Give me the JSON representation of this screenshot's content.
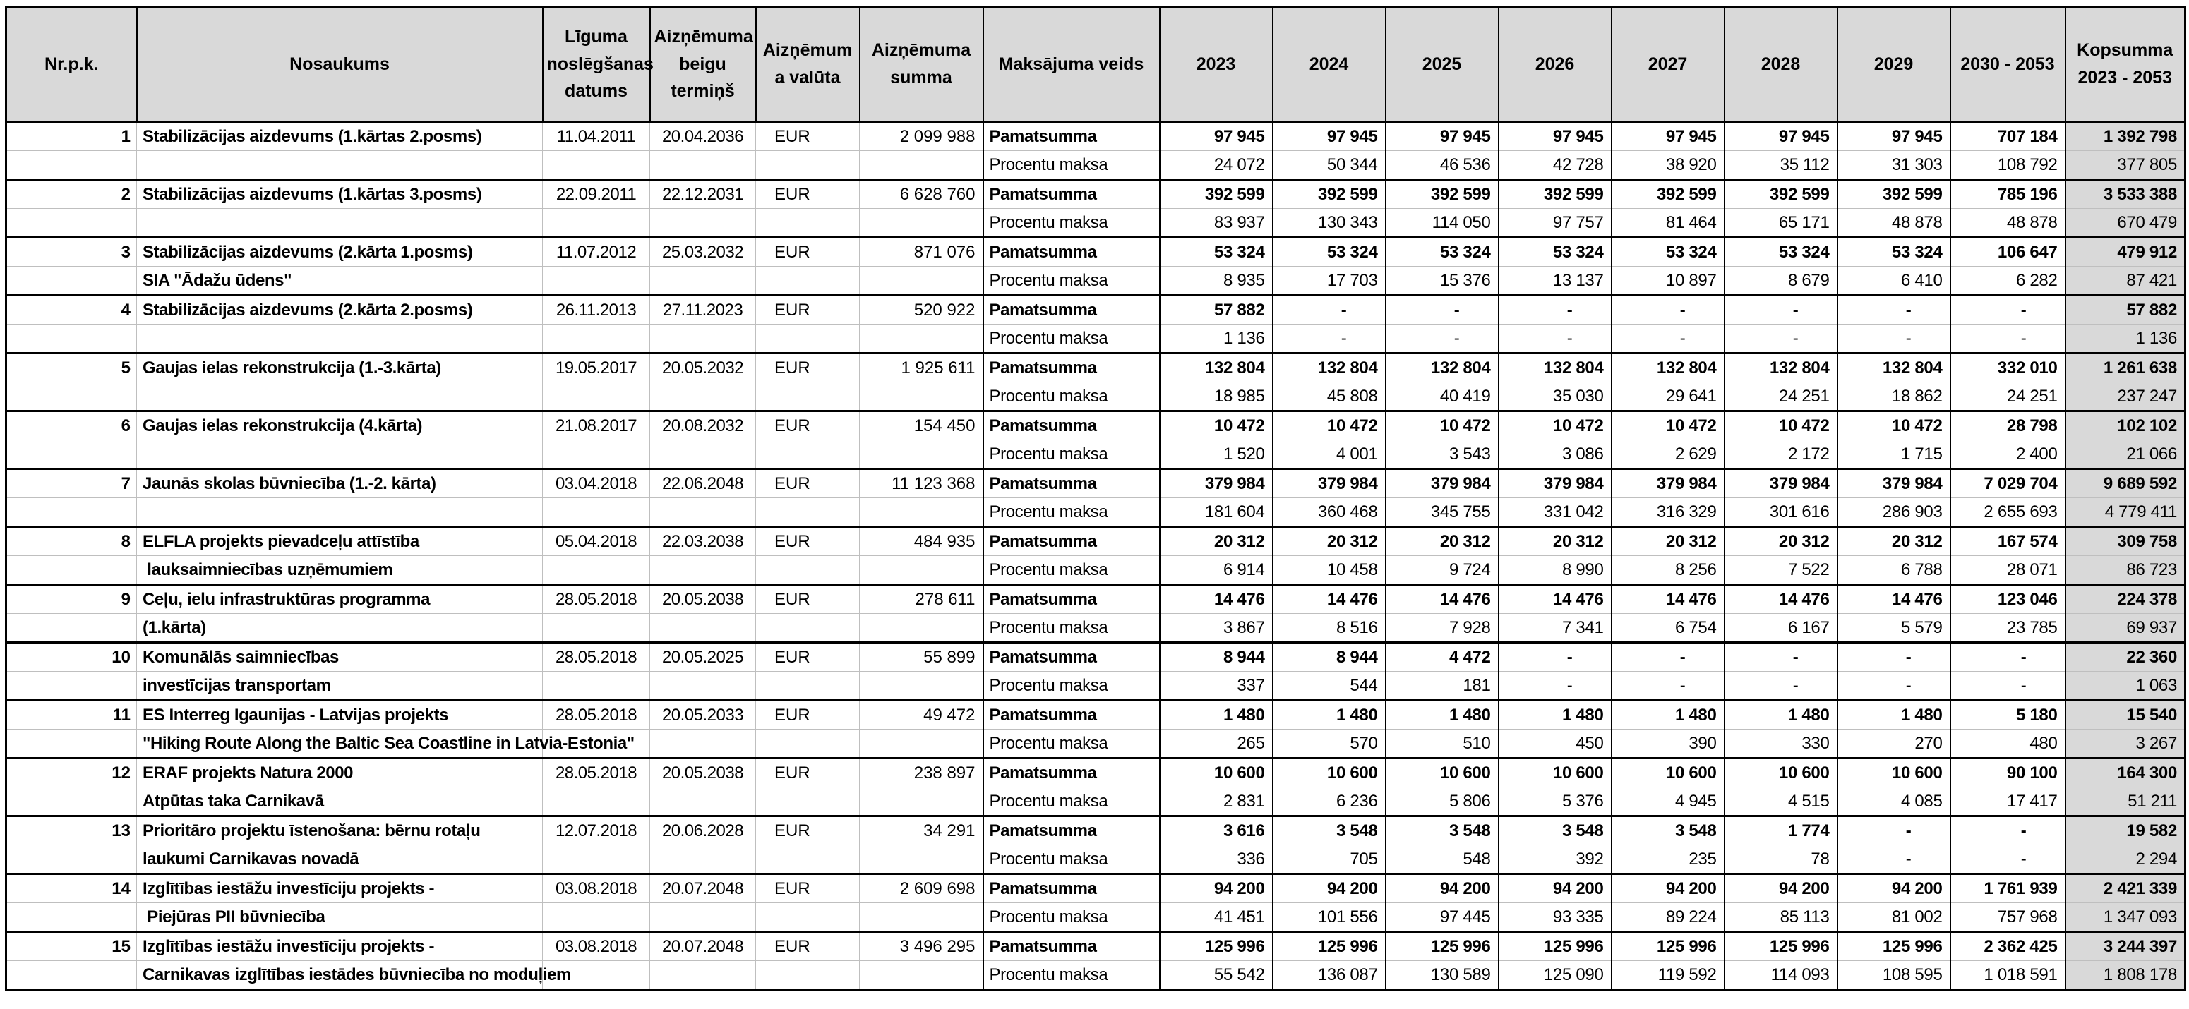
{
  "table": {
    "columns": [
      {
        "key": "nr",
        "label": "Nr.p.k."
      },
      {
        "key": "name",
        "label": "Nosaukums"
      },
      {
        "key": "date_signed",
        "label": "Līguma noslēgšanas datums"
      },
      {
        "key": "date_end",
        "label": "Aizņēmuma beigu termiņš"
      },
      {
        "key": "currency",
        "label": "Aizņēmuma valūta"
      },
      {
        "key": "amount",
        "label": "Aizņēmuma summa"
      },
      {
        "key": "payment_type",
        "label": "Maksājuma veids"
      },
      {
        "key": "y2023",
        "label": "2023"
      },
      {
        "key": "y2024",
        "label": "2024"
      },
      {
        "key": "y2025",
        "label": "2025"
      },
      {
        "key": "y2026",
        "label": "2026"
      },
      {
        "key": "y2027",
        "label": "2027"
      },
      {
        "key": "y2028",
        "label": "2028"
      },
      {
        "key": "y2029",
        "label": "2029"
      },
      {
        "key": "y2030_2053",
        "label": "2030 - 2053"
      },
      {
        "key": "total",
        "label": "Kopsumma 2023 - 2053"
      }
    ],
    "payment_row_labels": [
      "Pamatsumma",
      "Procentu maksa"
    ],
    "rows": [
      {
        "nr": "1",
        "name_lines": [
          "Stabilizācijas aizdevums (1.kārtas 2.posms)"
        ],
        "date_signed": "11.04.2011",
        "date_end": "20.04.2036",
        "currency": "EUR",
        "amount": "2 099 988",
        "pamatsumma": [
          "97 945",
          "97 945",
          "97 945",
          "97 945",
          "97 945",
          "97 945",
          "97 945",
          "707 184",
          "1 392 798"
        ],
        "procentu_maksa": [
          "24 072",
          "50 344",
          "46 536",
          "42 728",
          "38 920",
          "35 112",
          "31 303",
          "108 792",
          "377 805"
        ]
      },
      {
        "nr": "2",
        "name_lines": [
          "Stabilizācijas aizdevums (1.kārtas 3.posms)"
        ],
        "date_signed": "22.09.2011",
        "date_end": "22.12.2031",
        "currency": "EUR",
        "amount": "6 628 760",
        "pamatsumma": [
          "392 599",
          "392 599",
          "392 599",
          "392 599",
          "392 599",
          "392 599",
          "392 599",
          "785 196",
          "3 533 388"
        ],
        "procentu_maksa": [
          "83 937",
          "130 343",
          "114 050",
          "97 757",
          "81 464",
          "65 171",
          "48 878",
          "48 878",
          "670 479"
        ]
      },
      {
        "nr": "3",
        "name_lines": [
          "Stabilizācijas aizdevums (2.kārta 1.posms)",
          "SIA \"Ādažu ūdens\""
        ],
        "date_signed": "11.07.2012",
        "date_end": "25.03.2032",
        "currency": "EUR",
        "amount": "871 076",
        "pamatsumma": [
          "53 324",
          "53 324",
          "53 324",
          "53 324",
          "53 324",
          "53 324",
          "53 324",
          "106 647",
          "479 912"
        ],
        "procentu_maksa": [
          "8 935",
          "17 703",
          "15 376",
          "13 137",
          "10 897",
          "8 679",
          "6 410",
          "6 282",
          "87 421"
        ]
      },
      {
        "nr": "4",
        "name_lines": [
          "Stabilizācijas aizdevums (2.kārta 2.posms)"
        ],
        "date_signed": "26.11.2013",
        "date_end": "27.11.2023",
        "currency": "EUR",
        "amount": "520 922",
        "pamatsumma": [
          "57 882",
          "-",
          "-",
          "-",
          "-",
          "-",
          "-",
          "-",
          "57 882"
        ],
        "procentu_maksa": [
          "1 136",
          "-",
          "-",
          "-",
          "-",
          "-",
          "-",
          "-",
          "1 136"
        ]
      },
      {
        "nr": "5",
        "name_lines": [
          "Gaujas ielas rekonstrukcija (1.-3.kārta)"
        ],
        "date_signed": "19.05.2017",
        "date_end": "20.05.2032",
        "currency": "EUR",
        "amount": "1 925 611",
        "pamatsumma": [
          "132 804",
          "132 804",
          "132 804",
          "132 804",
          "132 804",
          "132 804",
          "132 804",
          "332 010",
          "1 261 638"
        ],
        "procentu_maksa": [
          "18 985",
          "45 808",
          "40 419",
          "35 030",
          "29 641",
          "24 251",
          "18 862",
          "24 251",
          "237 247"
        ]
      },
      {
        "nr": "6",
        "name_lines": [
          "Gaujas ielas rekonstrukcija (4.kārta)"
        ],
        "date_signed": "21.08.2017",
        "date_end": "20.08.2032",
        "currency": "EUR",
        "amount": "154 450",
        "pamatsumma": [
          "10 472",
          "10 472",
          "10 472",
          "10 472",
          "10 472",
          "10 472",
          "10 472",
          "28 798",
          "102 102"
        ],
        "procentu_maksa": [
          "1 520",
          "4 001",
          "3 543",
          "3 086",
          "2 629",
          "2 172",
          "1 715",
          "2 400",
          "21 066"
        ]
      },
      {
        "nr": "7",
        "name_lines": [
          "Jaunās skolas būvniecība (1.-2. kārta)"
        ],
        "date_signed": "03.04.2018",
        "date_end": "22.06.2048",
        "currency": "EUR",
        "amount": "11 123 368",
        "pamatsumma": [
          "379 984",
          "379 984",
          "379 984",
          "379 984",
          "379 984",
          "379 984",
          "379 984",
          "7 029 704",
          "9 689 592"
        ],
        "procentu_maksa": [
          "181 604",
          "360 468",
          "345 755",
          "331 042",
          "316 329",
          "301 616",
          "286 903",
          "2 655 693",
          "4 779 411"
        ]
      },
      {
        "nr": "8",
        "name_lines": [
          "ELFLA projekts pievadceļu attīstība",
          " lauksaimniecības uzņēmumiem"
        ],
        "date_signed": "05.04.2018",
        "date_end": "22.03.2038",
        "currency": "EUR",
        "amount": "484 935",
        "pamatsumma": [
          "20 312",
          "20 312",
          "20 312",
          "20 312",
          "20 312",
          "20 312",
          "20 312",
          "167 574",
          "309 758"
        ],
        "procentu_maksa": [
          "6 914",
          "10 458",
          "9 724",
          "8 990",
          "8 256",
          "7 522",
          "6 788",
          "28 071",
          "86 723"
        ]
      },
      {
        "nr": "9",
        "name_lines": [
          "Ceļu, ielu infrastruktūras programma",
          "(1.kārta)"
        ],
        "date_signed": "28.05.2018",
        "date_end": "20.05.2038",
        "currency": "EUR",
        "amount": "278 611",
        "pamatsumma": [
          "14 476",
          "14 476",
          "14 476",
          "14 476",
          "14 476",
          "14 476",
          "14 476",
          "123 046",
          "224 378"
        ],
        "procentu_maksa": [
          "3 867",
          "8 516",
          "7 928",
          "7 341",
          "6 754",
          "6 167",
          "5 579",
          "23 785",
          "69 937"
        ]
      },
      {
        "nr": "10",
        "name_lines": [
          "Komunālās saimniecības",
          "investīcijas transportam"
        ],
        "date_signed": "28.05.2018",
        "date_end": "20.05.2025",
        "currency": "EUR",
        "amount": "55 899",
        "pamatsumma": [
          "8 944",
          "8 944",
          "4 472",
          "-",
          "-",
          "-",
          "-",
          "-",
          "22 360"
        ],
        "procentu_maksa": [
          "337",
          "544",
          "181",
          "-",
          "-",
          "-",
          "-",
          "-",
          "1 063"
        ]
      },
      {
        "nr": "11",
        "name_lines": [
          "ES Interreg Igaunijas - Latvijas projekts",
          "\"Hiking Route Along the Baltic Sea Coastline in Latvia-Estonia\""
        ],
        "date_signed": "28.05.2018",
        "date_end": "20.05.2033",
        "currency": "EUR",
        "amount": "49 472",
        "pamatsumma": [
          "1 480",
          "1 480",
          "1 480",
          "1 480",
          "1 480",
          "1 480",
          "1 480",
          "5 180",
          "15 540"
        ],
        "procentu_maksa": [
          "265",
          "570",
          "510",
          "450",
          "390",
          "330",
          "270",
          "480",
          "3 267"
        ]
      },
      {
        "nr": "12",
        "name_lines": [
          "ERAF projekts Natura 2000",
          "Atpūtas taka Carnikavā"
        ],
        "date_signed": "28.05.2018",
        "date_end": "20.05.2038",
        "currency": "EUR",
        "amount": "238 897",
        "pamatsumma": [
          "10 600",
          "10 600",
          "10 600",
          "10 600",
          "10 600",
          "10 600",
          "10 600",
          "90 100",
          "164 300"
        ],
        "procentu_maksa": [
          "2 831",
          "6 236",
          "5 806",
          "5 376",
          "4 945",
          "4 515",
          "4 085",
          "17 417",
          "51 211"
        ]
      },
      {
        "nr": "13",
        "name_lines": [
          "Prioritāro projektu īstenošana: bērnu rotaļu",
          "laukumi Carnikavas novadā"
        ],
        "date_signed": "12.07.2018",
        "date_end": "20.06.2028",
        "currency": "EUR",
        "amount": "34 291",
        "pamatsumma": [
          "3 616",
          "3 548",
          "3 548",
          "3 548",
          "3 548",
          "1 774",
          "-",
          "-",
          "19 582"
        ],
        "procentu_maksa": [
          "336",
          "705",
          "548",
          "392",
          "235",
          "78",
          "-",
          "-",
          "2 294"
        ]
      },
      {
        "nr": "14",
        "name_lines": [
          "Izglītības iestāžu investīciju projekts -",
          " Piejūras PII būvniecība"
        ],
        "date_signed": "03.08.2018",
        "date_end": "20.07.2048",
        "currency": "EUR",
        "amount": "2 609 698",
        "pamatsumma": [
          "94 200",
          "94 200",
          "94 200",
          "94 200",
          "94 200",
          "94 200",
          "94 200",
          "1 761 939",
          "2 421 339"
        ],
        "procentu_maksa": [
          "41 451",
          "101 556",
          "97 445",
          "93 335",
          "89 224",
          "85 113",
          "81 002",
          "757 968",
          "1 347 093"
        ]
      },
      {
        "nr": "15",
        "name_lines": [
          "Izglītības iestāžu investīciju projekts -",
          "Carnikavas izglītības iestādes būvniecība no moduļiem"
        ],
        "date_signed": "03.08.2018",
        "date_end": "20.07.2048",
        "currency": "EUR",
        "amount": "3 496 295",
        "pamatsumma": [
          "125 996",
          "125 996",
          "125 996",
          "125 996",
          "125 996",
          "125 996",
          "125 996",
          "2 362 425",
          "3 244 397"
        ],
        "procentu_maksa": [
          "55 542",
          "136 087",
          "130 589",
          "125 090",
          "119 592",
          "114 093",
          "108 595",
          "1 018 591",
          "1 808 178"
        ]
      }
    ]
  },
  "colors": {
    "header_bg": "#d9d9d9",
    "total_column_bg": "#d9d9d9",
    "grid_dark": "#000000",
    "grid_light": "#bfbfbf"
  }
}
